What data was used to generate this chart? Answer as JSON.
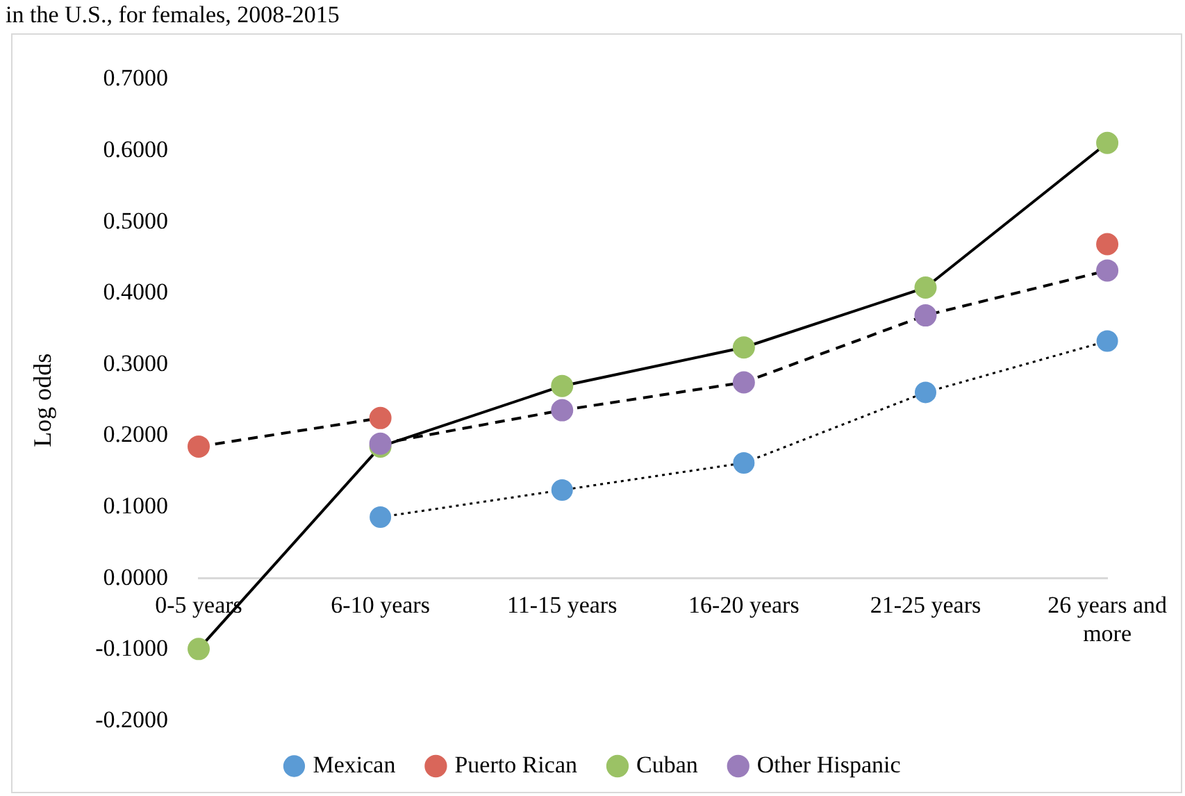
{
  "chart_data": {
    "type": "line",
    "title": "in the U.S., for females, 2008-2015",
    "ylabel": "Log odds",
    "categories": [
      "0-5 years",
      "6-10 years",
      "11-15 years",
      "16-20 years",
      "21-25 years",
      "26 years and more"
    ],
    "series": [
      {
        "name": "Mexican",
        "color": "#5b9bd5",
        "line_style": "dotted",
        "values": [
          null,
          0.086,
          0.124,
          0.162,
          0.261,
          0.333
        ]
      },
      {
        "name": "Puerto Rican",
        "color": "#d9665a",
        "line_style": "dashed",
        "values": [
          0.185,
          0.225,
          null,
          null,
          null,
          0.469
        ]
      },
      {
        "name": "Cuban",
        "color": "#9bc265",
        "line_style": "solid",
        "values": [
          -0.099,
          0.185,
          0.27,
          0.324,
          0.408,
          0.611
        ]
      },
      {
        "name": "Other Hispanic",
        "color": "#9a7dbb",
        "line_style": "dashed",
        "values": [
          null,
          0.189,
          0.236,
          0.275,
          0.369,
          0.432
        ]
      }
    ],
    "ylim": [
      -0.2,
      0.7
    ],
    "yticks": [
      {
        "value": -0.2,
        "label": "-0.2000"
      },
      {
        "value": -0.1,
        "label": "-0.1000"
      },
      {
        "value": 0,
        "label": "0.0000"
      },
      {
        "value": 0.1,
        "label": "0.1000"
      },
      {
        "value": 0.2,
        "label": "0.2000"
      },
      {
        "value": 0.3,
        "label": "0.3000"
      },
      {
        "value": 0.4,
        "label": "0.4000"
      },
      {
        "value": 0.5,
        "label": "0.5000"
      },
      {
        "value": 0.6,
        "label": "0.6000"
      },
      {
        "value": 0.7,
        "label": "0.7000"
      }
    ],
    "grid": false,
    "legend": "bottom",
    "marker": "circle"
  }
}
